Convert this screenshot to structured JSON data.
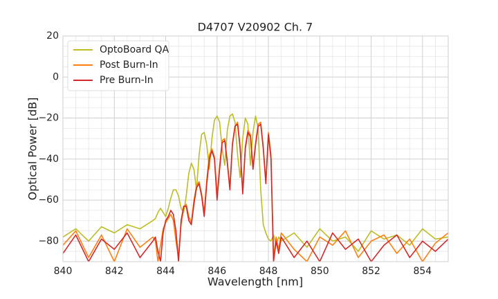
{
  "chart_data": {
    "type": "line",
    "title": "D4707 V20902 Ch. 7",
    "x_label": "Wavelength [nm]",
    "y_label": "Optical Power [dB]",
    "x": [
      840,
      840.5,
      841,
      841.5,
      842,
      842.5,
      843,
      843.5,
      843.6,
      843.7,
      843.8,
      843.9,
      844,
      844.1,
      844.2,
      844.3,
      844.4,
      844.5,
      844.6,
      844.7,
      844.8,
      844.9,
      845,
      845.1,
      845.2,
      845.3,
      845.4,
      845.5,
      845.6,
      845.7,
      845.8,
      845.9,
      846,
      846.1,
      846.2,
      846.3,
      846.4,
      846.5,
      846.6,
      846.7,
      846.8,
      846.9,
      847,
      847.1,
      847.2,
      847.3,
      847.4,
      847.5,
      847.6,
      847.7,
      847.8,
      847.9,
      848,
      848.1,
      848.2,
      848.3,
      848.4,
      848.5,
      849,
      849.5,
      850,
      850.5,
      851,
      851.5,
      852,
      852.5,
      853,
      853.5,
      854,
      854.5,
      855
    ],
    "series": [
      {
        "name": "OptoBoard QA",
        "color": "#bcbd22",
        "values": [
          -78,
          -74,
          -80,
          -73,
          -76,
          -72,
          -74,
          -70,
          -69,
          -66,
          -64,
          -66,
          -68,
          -64,
          -59,
          -55,
          -55,
          -58,
          -64,
          -66,
          -58,
          -47,
          -42,
          -45,
          -55,
          -38,
          -28,
          -27,
          -33,
          -45,
          -30,
          -21,
          -19,
          -22,
          -35,
          -43,
          -26,
          -19,
          -18,
          -22,
          -38,
          -49,
          -30,
          -20,
          -23,
          -43,
          -27,
          -19,
          -25,
          -55,
          -72,
          -76,
          -79,
          -80,
          -77,
          -82,
          -78,
          -80,
          -76,
          -83,
          -74,
          -80,
          -78,
          -85,
          -75,
          -79,
          -77,
          -82,
          -74,
          -79,
          -78
        ]
      },
      {
        "name": "Post Burn-In",
        "color": "#ff7f0e",
        "values": [
          -82,
          -75,
          -88,
          -77,
          -90,
          -74,
          -83,
          -78,
          -80,
          -90,
          -82,
          -74,
          -71,
          -69,
          -67,
          -70,
          -80,
          -88,
          -72,
          -64,
          -62,
          -68,
          -71,
          -60,
          -53,
          -51,
          -57,
          -66,
          -50,
          -38,
          -35,
          -39,
          -58,
          -43,
          -31,
          -30,
          -41,
          -54,
          -32,
          -24,
          -22,
          -34,
          -56,
          -34,
          -26,
          -28,
          -44,
          -32,
          -23,
          -22,
          -34,
          -51,
          -27,
          -38,
          -88,
          -78,
          -84,
          -76,
          -84,
          -90,
          -78,
          -82,
          -75,
          -88,
          -80,
          -77,
          -86,
          -79,
          -90,
          -81,
          -76
        ]
      },
      {
        "name": "Pre Burn-In",
        "color": "#d62728",
        "values": [
          -86,
          -77,
          -90,
          -79,
          -84,
          -76,
          -88,
          -80,
          -78,
          -85,
          -90,
          -76,
          -70,
          -68,
          -65,
          -67,
          -75,
          -90,
          -70,
          -63,
          -63,
          -70,
          -72,
          -62,
          -54,
          -52,
          -58,
          -68,
          -52,
          -40,
          -36,
          -40,
          -60,
          -45,
          -32,
          -31,
          -42,
          -55,
          -33,
          -24,
          -23,
          -35,
          -57,
          -35,
          -27,
          -29,
          -45,
          -33,
          -24,
          -23,
          -35,
          -52,
          -28,
          -40,
          -90,
          -80,
          -86,
          -78,
          -88,
          -80,
          -90,
          -76,
          -84,
          -79,
          -90,
          -82,
          -77,
          -88,
          -80,
          -85,
          -79
        ]
      }
    ],
    "xlim": [
      840,
      855
    ],
    "ylim": [
      -90,
      20
    ],
    "xticks": [
      840,
      842,
      844,
      846,
      848,
      850,
      852,
      854
    ],
    "yticks": [
      {
        "value": -80,
        "label": "−80"
      },
      {
        "value": -60,
        "label": "−60"
      },
      {
        "value": -40,
        "label": "−40"
      },
      {
        "value": -20,
        "label": "−20"
      },
      0,
      20
    ],
    "grid": true,
    "minor_grid": true,
    "legend": "upper left"
  }
}
